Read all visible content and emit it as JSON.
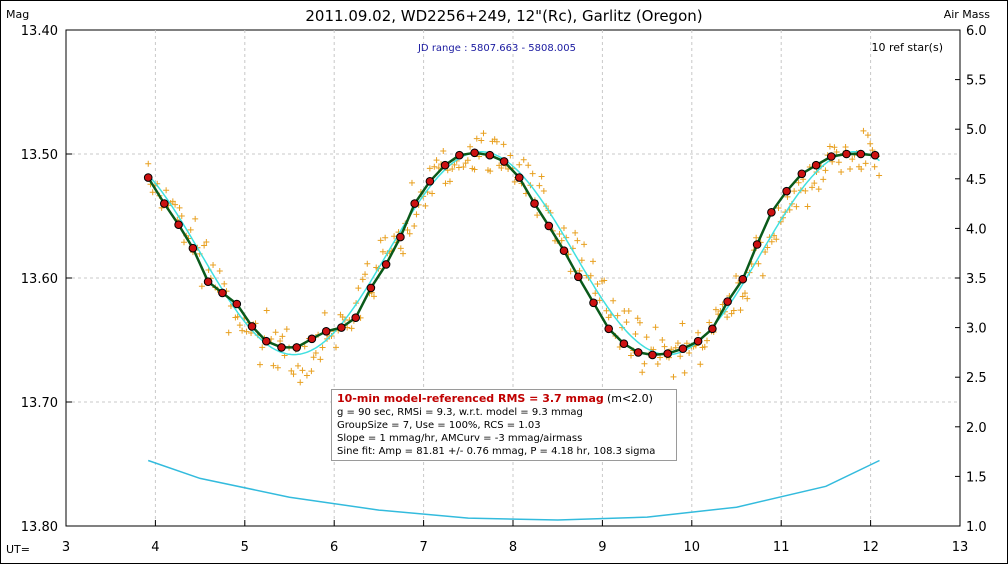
{
  "chart_data": {
    "type": "scatter",
    "title": "2011.09.02, WD2256+249, 12\"(Rc), Garlitz (Oregon)",
    "subtitle": "JD range : 5807.663 - 5808.005",
    "ref_stars": "10 ref star(s)",
    "ylabel_left": "Mag",
    "ylabel_right": "Air Mass",
    "xlabel": "UT=",
    "x_range": [
      3,
      13
    ],
    "y_left_range": [
      13.4,
      13.8
    ],
    "y_left_inverted": true,
    "y_right_range": [
      1.0,
      6.0
    ],
    "x_ticks": [
      "3",
      "4",
      "5",
      "6",
      "7",
      "8",
      "9",
      "10",
      "11",
      "12",
      "13"
    ],
    "y_left_ticks": [
      "13.40",
      "13.50",
      "13.60",
      "13.70",
      "13.80"
    ],
    "y_right_ticks": [
      "6.0",
      "5.5",
      "5.0",
      "4.5",
      "4.0",
      "3.5",
      "3.0",
      "2.5",
      "2.0",
      "1.5",
      "1.0"
    ],
    "grid": true,
    "model": {
      "mean_mag": 13.58,
      "amplitude_mag": 0.0818,
      "period_hr": 4.18,
      "max_faint_ut": 5.55
    },
    "airmass_curve": {
      "ut": [
        3.92,
        4.5,
        5.5,
        6.5,
        7.5,
        8.5,
        9.5,
        10.5,
        11.5,
        12.1
      ],
      "airmass": [
        1.66,
        1.48,
        1.29,
        1.16,
        1.08,
        1.06,
        1.09,
        1.19,
        1.4,
        1.66
      ]
    },
    "series": [
      {
        "name": "10-min averages",
        "ut": [
          3.92,
          4.1,
          4.26,
          4.42,
          4.59,
          4.75,
          4.91,
          5.08,
          5.24,
          5.41,
          5.58,
          5.75,
          5.91,
          6.08,
          6.24,
          6.41,
          6.58,
          6.74,
          6.9,
          7.07,
          7.24,
          7.4,
          7.57,
          7.74,
          7.9,
          8.07,
          8.24,
          8.4,
          8.57,
          8.73,
          8.9,
          9.07,
          9.24,
          9.4,
          9.56,
          9.73,
          9.9,
          10.07,
          10.23,
          10.4,
          10.57,
          10.73,
          10.89,
          11.06,
          11.23,
          11.39,
          11.56,
          11.73,
          11.89,
          12.05
        ],
        "mag": [
          13.519,
          13.54,
          13.557,
          13.576,
          13.603,
          13.612,
          13.621,
          13.639,
          13.651,
          13.656,
          13.656,
          13.649,
          13.643,
          13.64,
          13.632,
          13.608,
          13.589,
          13.567,
          13.54,
          13.522,
          13.509,
          13.501,
          13.499,
          13.501,
          13.506,
          13.519,
          13.54,
          13.558,
          13.578,
          13.599,
          13.62,
          13.641,
          13.653,
          13.66,
          13.662,
          13.661,
          13.657,
          13.651,
          13.641,
          13.619,
          13.601,
          13.573,
          13.547,
          13.53,
          13.516,
          13.509,
          13.502,
          13.5,
          13.5,
          13.501
        ]
      }
    ]
  },
  "stats": {
    "headline": "10-min model-referenced RMS = 3.7 mmag",
    "headline_suffix": "(m<2.0)",
    "line1": "g = 90 sec, RMSi = 9.3, w.r.t. model = 9.3 mmag",
    "line2": "GroupSize = 7, Use = 100%, RCS = 1.03",
    "line3": "Slope = 1 mmag/hr, AMCurv = -3 mmag/airmass",
    "line4": "Sine fit: Amp = 81.81 +/- 0.76 mmag, P = 4.18 hr, 108.3 sigma"
  },
  "colors": {
    "raw_points": "#e8a020",
    "avg_fill": "#cc1111",
    "model_line": "#0a5a1a",
    "fit_line": "#40e0e0",
    "airmass_line": "#33bbdd",
    "grid": "#c8c8c8"
  }
}
